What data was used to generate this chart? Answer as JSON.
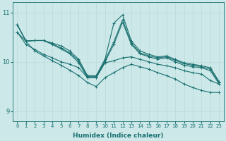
{
  "xlabel": "Humidex (Indice chaleur)",
  "xlim": [
    -0.5,
    23.5
  ],
  "ylim": [
    8.8,
    11.2
  ],
  "yticks": [
    9,
    10,
    11
  ],
  "xticks": [
    0,
    1,
    2,
    3,
    4,
    5,
    6,
    7,
    8,
    9,
    10,
    11,
    12,
    13,
    14,
    15,
    16,
    17,
    18,
    19,
    20,
    21,
    22,
    23
  ],
  "bg_color": "#cce8e8",
  "line_color": "#1a7070",
  "grid_color": "#bbdada",
  "lines": [
    {
      "x": [
        0,
        1,
        2,
        3,
        4,
        5,
        6,
        7,
        8,
        9,
        10,
        11,
        12,
        13,
        14,
        15,
        16,
        17,
        18,
        19,
        20,
        21,
        22,
        23
      ],
      "y": [
        10.75,
        10.42,
        10.43,
        10.43,
        10.38,
        10.32,
        10.22,
        10.05,
        9.72,
        9.72,
        10.05,
        10.78,
        10.95,
        10.42,
        10.22,
        10.15,
        10.1,
        10.12,
        10.05,
        9.98,
        9.95,
        9.92,
        9.88,
        9.6
      ]
    },
    {
      "x": [
        0,
        1,
        2,
        3,
        4,
        5,
        6,
        7,
        8,
        9,
        10,
        11,
        12,
        13,
        14,
        15,
        16,
        17,
        18,
        19,
        20,
        21,
        22,
        23
      ],
      "y": [
        10.75,
        10.42,
        10.43,
        10.43,
        10.36,
        10.28,
        10.18,
        10.02,
        9.7,
        9.7,
        10.03,
        10.4,
        10.85,
        10.38,
        10.18,
        10.12,
        10.08,
        10.1,
        10.03,
        9.96,
        9.93,
        9.9,
        9.85,
        9.58
      ]
    },
    {
      "x": [
        0,
        1,
        2,
        3,
        4,
        5,
        6,
        7,
        8,
        9,
        10,
        11,
        12,
        13,
        14,
        15,
        16,
        17,
        18,
        19,
        20,
        21,
        22,
        23
      ],
      "y": [
        10.75,
        10.42,
        10.43,
        10.43,
        10.35,
        10.26,
        10.16,
        9.98,
        9.68,
        9.68,
        10.0,
        10.35,
        10.8,
        10.35,
        10.16,
        10.1,
        10.05,
        10.08,
        10.0,
        9.93,
        9.9,
        9.88,
        9.82,
        9.55
      ]
    },
    {
      "x": [
        0,
        1,
        2,
        3,
        4,
        5,
        6,
        7,
        8,
        9,
        10,
        11,
        12,
        13,
        14,
        15,
        16,
        17,
        18,
        19,
        20,
        21,
        22,
        23
      ],
      "y": [
        10.6,
        10.35,
        10.25,
        10.15,
        10.08,
        10.0,
        9.95,
        9.88,
        9.68,
        9.68,
        9.98,
        10.02,
        10.08,
        10.1,
        10.05,
        10.0,
        9.95,
        9.92,
        9.88,
        9.82,
        9.78,
        9.75,
        9.62,
        9.55
      ]
    },
    {
      "x": [
        0,
        2,
        3,
        4,
        5,
        6,
        7,
        8,
        9,
        10,
        11,
        12,
        13,
        14,
        15,
        16,
        17,
        18,
        19,
        20,
        21,
        22,
        23
      ],
      "y": [
        10.6,
        10.22,
        10.12,
        10.02,
        9.93,
        9.83,
        9.72,
        9.58,
        9.5,
        9.68,
        9.78,
        9.88,
        9.95,
        9.9,
        9.85,
        9.78,
        9.72,
        9.65,
        9.55,
        9.48,
        9.42,
        9.38,
        9.38
      ]
    }
  ]
}
